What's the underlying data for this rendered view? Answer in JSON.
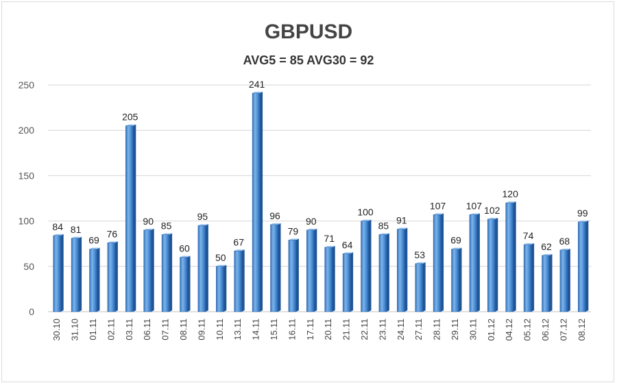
{
  "chart_data": {
    "type": "bar",
    "title": "GBPUSD",
    "subtitle": "AVG5 = 85 AVG30 = 92",
    "xlabel": "",
    "ylabel": "",
    "ylim": [
      0,
      250
    ],
    "yticks": [
      0,
      50,
      100,
      150,
      200,
      250
    ],
    "grid": true,
    "categories": [
      "30.10",
      "31.10",
      "01.11",
      "02.11",
      "03.11",
      "06.11",
      "07.11",
      "08.11",
      "09.11",
      "10.11",
      "13.11",
      "14.11",
      "15.11",
      "16.11",
      "17.11",
      "20.11",
      "21.11",
      "22.11",
      "23.11",
      "24.11",
      "27.11",
      "28.11",
      "29.11",
      "30.11",
      "01.12",
      "04.12",
      "05.12",
      "06.12",
      "07.12",
      "08.12"
    ],
    "values": [
      84,
      81,
      69,
      76,
      205,
      90,
      85,
      60,
      95,
      50,
      67,
      241,
      96,
      79,
      90,
      71,
      64,
      100,
      85,
      91,
      53,
      107,
      69,
      107,
      102,
      120,
      74,
      62,
      68,
      99
    ],
    "bar_color": "#4a8fd6"
  }
}
